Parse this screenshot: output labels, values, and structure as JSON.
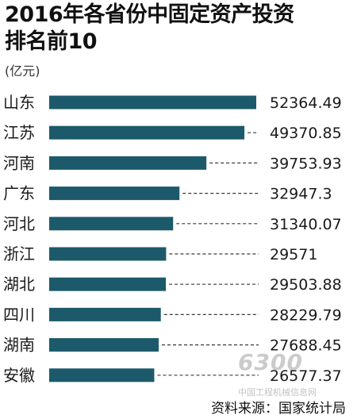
{
  "title_line1": "2016年各省份中固定资产投资",
  "title_line2": "排名前10",
  "unit": "(亿元)",
  "source": "资料来源：国家统计局",
  "watermark": "6300",
  "watermark_sub": "中国工程机械信息网",
  "colors": {
    "bar": "#1c5a6b",
    "leader": "#3a3a3a",
    "text": "#1a1a1a"
  },
  "chart_data": {
    "type": "bar",
    "orientation": "horizontal",
    "title": "2016年各省份中固定资产投资排名前10",
    "ylabel": "(亿元)",
    "categories": [
      "山东",
      "江苏",
      "河南",
      "广东",
      "河北",
      "浙江",
      "湖北",
      "四川",
      "湖南",
      "安徽"
    ],
    "values": [
      52364.49,
      49370.85,
      39753.93,
      32947.3,
      31340.07,
      29571,
      29503.88,
      28229.79,
      27688.45,
      26577.37
    ],
    "value_labels": [
      "52364.49",
      "49370.85",
      "39753.93",
      "32947.3",
      "31340.07",
      "29571",
      "29503.88",
      "28229.79",
      "27688.45",
      "26577.37"
    ],
    "xlim": [
      0,
      52364.49
    ],
    "grid": false
  }
}
